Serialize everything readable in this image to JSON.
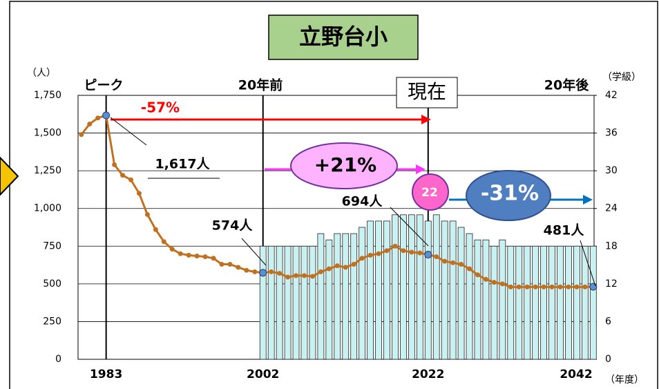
{
  "chart_data": {
    "type": "bar-line",
    "title": "立野台小",
    "y_axis_label": "（人）",
    "y2_axis_label": "（学級）",
    "x_axis_label": "（年度）",
    "annotations": [
      "ピーク",
      "20年前",
      "現在",
      "20年後",
      "-57%",
      "+21%",
      "-31%",
      "22",
      "1,617人",
      "574人",
      "694人",
      "481人"
    ],
    "xlim": [
      1979.6,
      2042.1
    ],
    "xticks": [
      1983,
      2002,
      2022,
      2042
    ],
    "ylim": [
      0,
      1750
    ],
    "yticks": [
      0,
      250,
      500,
      750,
      {
        "value": 1000,
        "label": "1,000"
      },
      {
        "value": 1250,
        "label": "1,250"
      },
      {
        "value": 1500,
        "label": "1,500"
      },
      {
        "value": 1750,
        "label": "1,750"
      }
    ],
    "y2lim": [
      0,
      42
    ],
    "y2ticks": [
      0,
      6,
      12,
      18,
      24,
      30,
      36,
      42
    ],
    "series": [
      {
        "type": "bar",
        "axis": "y2",
        "color": "#c9f1f1",
        "x": [
          2002,
          2003,
          2004,
          2005,
          2006,
          2007,
          2008,
          2009,
          2010,
          2011,
          2012,
          2013,
          2014,
          2015,
          2016,
          2017,
          2018,
          2019,
          2020,
          2021,
          2022,
          2023,
          2024,
          2025,
          2026,
          2027,
          2028,
          2029,
          2030,
          2031,
          2032,
          2033,
          2034,
          2035,
          2036,
          2037,
          2038,
          2039,
          2040,
          2041,
          2042
        ],
        "values": [
          18,
          18,
          18,
          18,
          18,
          18,
          18,
          20,
          19,
          20,
          20,
          20,
          21,
          22,
          22,
          22,
          23,
          23,
          23,
          23,
          22,
          23,
          22,
          22,
          21,
          20,
          19,
          19,
          18,
          19,
          18,
          18,
          18,
          18,
          18,
          18,
          18,
          18,
          18,
          18,
          18
        ]
      },
      {
        "type": "line",
        "color": "#c0701e",
        "x": [
          1980,
          1981,
          1982,
          1983,
          1984,
          1985,
          1986,
          1987,
          1988,
          1989,
          1990,
          1991,
          1992,
          1993,
          1994,
          1995,
          1996,
          1997,
          1998,
          1999,
          2000,
          2001,
          2002,
          2003,
          2004,
          2005,
          2006,
          2007,
          2008,
          2009,
          2010,
          2011,
          2012,
          2013,
          2014,
          2015,
          2016,
          2017,
          2018,
          2019,
          2020,
          2021,
          2022,
          2023,
          2024,
          2025,
          2026,
          2027,
          2028,
          2029,
          2030,
          2031,
          2032,
          2033,
          2034,
          2035,
          2036,
          2037,
          2038,
          2039,
          2040,
          2041,
          2042
        ],
        "values": [
          1490,
          1560,
          1600,
          1617,
          1290,
          1220,
          1190,
          1100,
          960,
          860,
          780,
          730,
          700,
          690,
          685,
          680,
          670,
          630,
          630,
          610,
          590,
          580,
          574,
          580,
          570,
          545,
          555,
          555,
          550,
          580,
          600,
          620,
          610,
          630,
          670,
          690,
          700,
          720,
          750,
          720,
          710,
          705,
          694,
          680,
          650,
          640,
          630,
          600,
          560,
          530,
          510,
          500,
          480,
          480,
          480,
          480,
          480,
          480,
          480,
          480,
          480,
          480,
          481
        ]
      }
    ]
  }
}
